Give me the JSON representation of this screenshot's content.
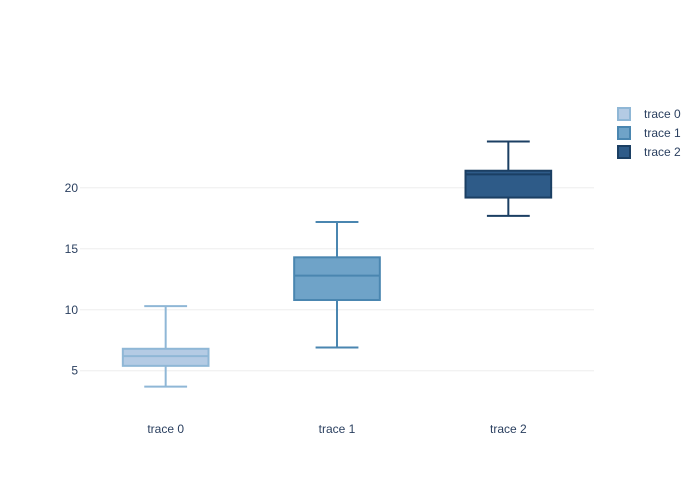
{
  "chart_data": {
    "type": "box",
    "categories": [
      "trace 0",
      "trace 1",
      "trace 2"
    ],
    "ylim": [
      2.6,
      27.2
    ],
    "yticks": [
      5,
      10,
      15,
      20
    ],
    "grid": true,
    "legend_placement": "top-right",
    "series": [
      {
        "name": "trace 0",
        "min": 3.7,
        "q1": 5.4,
        "median": 6.2,
        "q3": 6.8,
        "max": 10.3,
        "fill": "#b4cbe4",
        "stroke": "#8fb7d6"
      },
      {
        "name": "trace 1",
        "min": 6.9,
        "q1": 10.8,
        "median": 12.8,
        "q3": 14.3,
        "max": 17.2,
        "fill": "#6fa3c8",
        "stroke": "#4a86b0"
      },
      {
        "name": "trace 2",
        "min": 17.7,
        "q1": 19.2,
        "median": 21.1,
        "q3": 21.4,
        "max": 23.8,
        "fill": "#2e5b88",
        "stroke": "#1b3f63"
      }
    ]
  }
}
